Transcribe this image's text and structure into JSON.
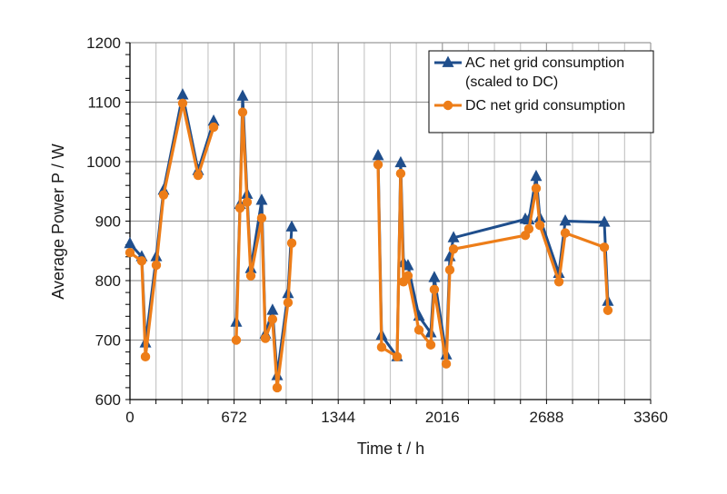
{
  "chart_data": {
    "type": "line",
    "title": "",
    "xlabel": "Time t / h",
    "ylabel": "Average Power P / W",
    "xlim": [
      0,
      3360
    ],
    "ylim": [
      600,
      1200
    ],
    "x_ticks": [
      0,
      672,
      1344,
      2016,
      2688,
      3360
    ],
    "x_tick_labels": [
      "0",
      "672",
      "1344",
      "2016",
      "2688",
      "3360"
    ],
    "x_minor_step": 168,
    "y_ticks": [
      600,
      700,
      800,
      900,
      1000,
      1100,
      1200
    ],
    "y_tick_labels": [
      "600",
      "700",
      "800",
      "900",
      "1000",
      "1100",
      "1200"
    ],
    "y_minor_step": 20,
    "grid": true,
    "legend_position": "top-right",
    "series": [
      {
        "name": "AC net grid consumption (scaled to DC)",
        "legend_lines": [
          "AC net grid consumption",
          "(scaled to DC)"
        ],
        "color": "#1f4e8c",
        "marker": "triangle",
        "segments": [
          [
            [
              0,
              862
            ],
            [
              76,
              840
            ],
            [
              100,
              695
            ],
            [
              170,
              840
            ],
            [
              217,
              952
            ],
            [
              340,
              1112
            ],
            [
              440,
              985
            ],
            [
              540,
              1068
            ]
          ],
          [
            [
              686,
              730
            ],
            [
              710,
              928
            ],
            [
              727,
              1110
            ],
            [
              756,
              945
            ],
            [
              780,
              820
            ],
            [
              850,
              935
            ],
            [
              874,
              710
            ],
            [
              920,
              750
            ],
            [
              950,
              640
            ],
            [
              1020,
              778
            ],
            [
              1044,
              890
            ]
          ],
          [
            [
              1601,
              1010
            ],
            [
              1624,
              708
            ],
            [
              1724,
              672
            ],
            [
              1747,
              998
            ],
            [
              1765,
              830
            ],
            [
              1794,
              825
            ],
            [
              1865,
              740
            ],
            [
              1941,
              712
            ],
            [
              1964,
              805
            ],
            [
              2041,
              675
            ],
            [
              2064,
              840
            ],
            [
              2088,
              872
            ],
            [
              2551,
              903
            ],
            [
              2574,
              902
            ],
            [
              2621,
              975
            ],
            [
              2645,
              905
            ],
            [
              2768,
              812
            ],
            [
              2809,
              900
            ],
            [
              3061,
              898
            ],
            [
              3084,
              765
            ]
          ]
        ]
      },
      {
        "name": "DC net grid consumption",
        "legend_lines": [
          "DC net grid consumption"
        ],
        "color": "#ed7d18",
        "marker": "circle",
        "segments": [
          [
            [
              0,
              847
            ],
            [
              76,
              833
            ],
            [
              100,
              672
            ],
            [
              170,
              826
            ],
            [
              217,
              944
            ],
            [
              340,
              1098
            ],
            [
              440,
              977
            ],
            [
              540,
              1058
            ]
          ],
          [
            [
              686,
              700
            ],
            [
              710,
              922
            ],
            [
              727,
              1083
            ],
            [
              756,
              932
            ],
            [
              780,
              808
            ],
            [
              850,
              905
            ],
            [
              874,
              703
            ],
            [
              920,
              735
            ],
            [
              950,
              620
            ],
            [
              1020,
              763
            ],
            [
              1044,
              863
            ]
          ],
          [
            [
              1601,
              995
            ],
            [
              1624,
              688
            ],
            [
              1724,
              672
            ],
            [
              1747,
              980
            ],
            [
              1765,
              798
            ],
            [
              1794,
              808
            ],
            [
              1865,
              717
            ],
            [
              1941,
              692
            ],
            [
              1964,
              785
            ],
            [
              2041,
              660
            ],
            [
              2064,
              818
            ],
            [
              2088,
              853
            ],
            [
              2551,
              876
            ],
            [
              2574,
              887
            ],
            [
              2621,
              955
            ],
            [
              2645,
              893
            ],
            [
              2768,
              798
            ],
            [
              2809,
              880
            ],
            [
              3061,
              856
            ],
            [
              3084,
              750
            ]
          ]
        ]
      }
    ]
  }
}
